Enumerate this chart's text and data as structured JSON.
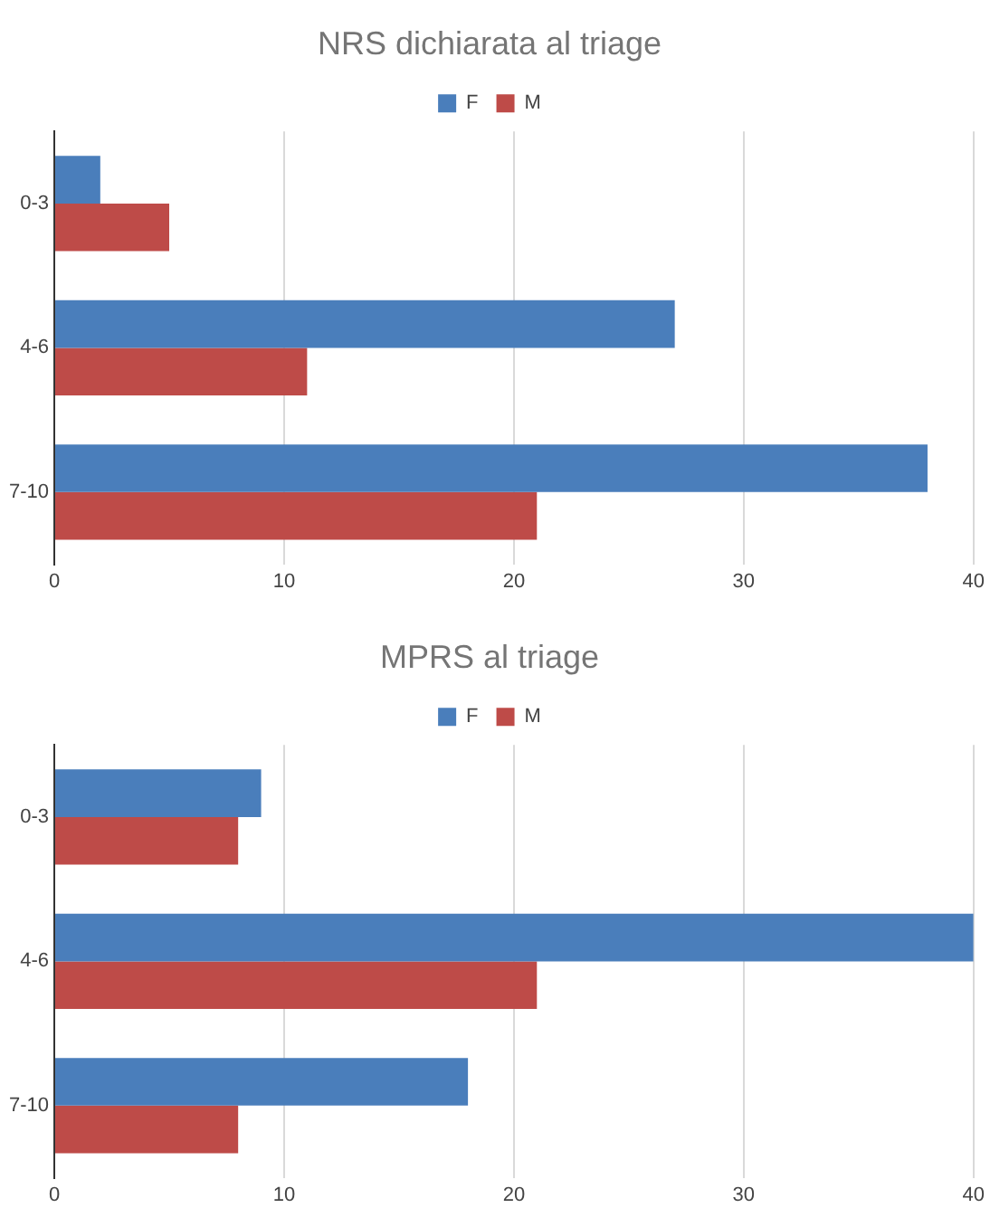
{
  "chart_data": [
    {
      "type": "bar",
      "orientation": "horizontal",
      "title": "NRS dichiarata al triage",
      "categories": [
        "0-3",
        "4-6",
        "7-10"
      ],
      "series": [
        {
          "name": "F",
          "color": "#4a7ebb",
          "values": [
            2,
            27,
            38
          ]
        },
        {
          "name": "M",
          "color": "#be4b48",
          "values": [
            5,
            11,
            21
          ]
        }
      ],
      "xlim": [
        0,
        40
      ],
      "xticks": [
        0,
        10,
        20,
        30,
        40
      ],
      "grid": "x",
      "legend": "top"
    },
    {
      "type": "bar",
      "orientation": "horizontal",
      "title": "MPRS al triage",
      "categories": [
        "0-3",
        "4-6",
        "7-10"
      ],
      "series": [
        {
          "name": "F",
          "color": "#4a7ebb",
          "values": [
            9,
            40,
            18
          ]
        },
        {
          "name": "M",
          "color": "#be4b48",
          "values": [
            8,
            21,
            8
          ]
        }
      ],
      "xlim": [
        0,
        40
      ],
      "xticks": [
        0,
        10,
        20,
        30,
        40
      ],
      "grid": "x",
      "legend": "top"
    }
  ]
}
